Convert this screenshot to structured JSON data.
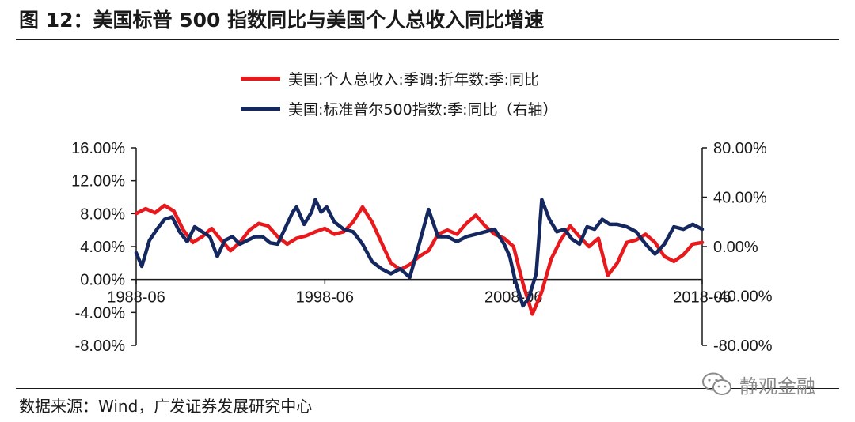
{
  "figure": {
    "title": "图 12：美国标普 500 指数同比与美国个人总收入同比增速",
    "source": "数据来源：Wind，广发证券发展研究中心",
    "watermark": "静观金融"
  },
  "legend": [
    {
      "label": "美国:个人总收入:季调:折年数:季:同比",
      "color": "#e8191d"
    },
    {
      "label": "美国:标准普尔500指数:季:同比（右轴）",
      "color": "#14285f"
    }
  ],
  "chart_data": {
    "type": "line",
    "title": "美国标普 500 指数同比与美国个人总收入同比增速",
    "x_range": [
      1988.5,
      2018.5
    ],
    "x_tick_labels": [
      "1988-06",
      "1998-06",
      "2008-06",
      "2018-06"
    ],
    "x_tick_values": [
      1988.5,
      1998.5,
      2008.5,
      2018.5
    ],
    "left_axis": {
      "range": [
        -8,
        16
      ],
      "ticks": [
        -8,
        -4,
        0,
        4,
        8,
        12,
        16
      ],
      "tick_labels": [
        "-8.00%",
        "-4.00%",
        "0.00%",
        "4.00%",
        "8.00%",
        "12.00%",
        "16.00%"
      ]
    },
    "right_axis": {
      "range": [
        -80,
        80
      ],
      "ticks": [
        -80,
        -40,
        0,
        40,
        80
      ],
      "tick_labels": [
        "-80.00%",
        "-40.00%",
        "0.00%",
        "40.00%",
        "80.00%"
      ]
    },
    "series": [
      {
        "name": "美国:个人总收入:季调:折年数:季:同比",
        "axis": "left",
        "color": "#e8191d",
        "points": [
          [
            1988.5,
            8.0
          ],
          [
            1989.0,
            8.6
          ],
          [
            1989.5,
            8.1
          ],
          [
            1990.0,
            9.0
          ],
          [
            1990.5,
            8.3
          ],
          [
            1991.0,
            6.0
          ],
          [
            1991.5,
            4.5
          ],
          [
            1992.0,
            5.2
          ],
          [
            1992.5,
            6.2
          ],
          [
            1993.0,
            4.8
          ],
          [
            1993.5,
            3.5
          ],
          [
            1994.0,
            4.5
          ],
          [
            1994.5,
            6.0
          ],
          [
            1995.0,
            6.8
          ],
          [
            1995.5,
            6.5
          ],
          [
            1996.0,
            5.2
          ],
          [
            1996.5,
            4.3
          ],
          [
            1997.0,
            5.0
          ],
          [
            1997.5,
            5.3
          ],
          [
            1998.0,
            5.8
          ],
          [
            1998.5,
            6.2
          ],
          [
            1999.0,
            5.5
          ],
          [
            1999.5,
            5.8
          ],
          [
            2000.0,
            7.0
          ],
          [
            2000.5,
            8.8
          ],
          [
            2001.0,
            7.0
          ],
          [
            2001.5,
            4.5
          ],
          [
            2002.0,
            2.0
          ],
          [
            2002.5,
            1.2
          ],
          [
            2003.0,
            1.8
          ],
          [
            2003.5,
            2.8
          ],
          [
            2004.0,
            3.5
          ],
          [
            2004.5,
            5.5
          ],
          [
            2005.0,
            6.0
          ],
          [
            2005.5,
            5.5
          ],
          [
            2006.0,
            6.8
          ],
          [
            2006.5,
            7.8
          ],
          [
            2007.0,
            6.5
          ],
          [
            2007.5,
            5.5
          ],
          [
            2008.0,
            5.0
          ],
          [
            2008.5,
            4.0
          ],
          [
            2009.0,
            -0.5
          ],
          [
            2009.5,
            -4.2
          ],
          [
            2010.0,
            -1.5
          ],
          [
            2010.5,
            2.5
          ],
          [
            2011.0,
            4.8
          ],
          [
            2011.5,
            6.5
          ],
          [
            2012.0,
            5.2
          ],
          [
            2012.5,
            4.0
          ],
          [
            2013.0,
            5.0
          ],
          [
            2013.5,
            0.5
          ],
          [
            2014.0,
            2.0
          ],
          [
            2014.5,
            4.5
          ],
          [
            2015.0,
            4.8
          ],
          [
            2015.5,
            5.5
          ],
          [
            2016.0,
            4.5
          ],
          [
            2016.5,
            2.8
          ],
          [
            2017.0,
            2.2
          ],
          [
            2017.5,
            3.0
          ],
          [
            2018.0,
            4.3
          ],
          [
            2018.5,
            4.5
          ]
        ]
      },
      {
        "name": "美国:标准普尔500指数:季:同比（右轴）",
        "axis": "right",
        "color": "#14285f",
        "points": [
          [
            1988.5,
            -5
          ],
          [
            1988.8,
            -16
          ],
          [
            1989.2,
            5
          ],
          [
            1989.6,
            14
          ],
          [
            1990.0,
            22
          ],
          [
            1990.4,
            24
          ],
          [
            1990.8,
            12
          ],
          [
            1991.2,
            4
          ],
          [
            1991.6,
            16
          ],
          [
            1992.0,
            12
          ],
          [
            1992.4,
            8
          ],
          [
            1992.8,
            -8
          ],
          [
            1993.2,
            5
          ],
          [
            1993.6,
            8
          ],
          [
            1994.0,
            2
          ],
          [
            1994.4,
            5
          ],
          [
            1994.8,
            8
          ],
          [
            1995.2,
            8
          ],
          [
            1995.6,
            3
          ],
          [
            1996.0,
            2
          ],
          [
            1996.4,
            15
          ],
          [
            1996.8,
            28
          ],
          [
            1997.0,
            32
          ],
          [
            1997.4,
            18
          ],
          [
            1997.8,
            28
          ],
          [
            1998.0,
            38
          ],
          [
            1998.3,
            28
          ],
          [
            1998.6,
            32
          ],
          [
            1999.0,
            20
          ],
          [
            1999.5,
            14
          ],
          [
            2000.0,
            12
          ],
          [
            2000.5,
            2
          ],
          [
            2001.0,
            -12
          ],
          [
            2001.5,
            -18
          ],
          [
            2002.0,
            -22
          ],
          [
            2002.5,
            -18
          ],
          [
            2003.0,
            -25
          ],
          [
            2003.5,
            2
          ],
          [
            2004.0,
            30
          ],
          [
            2004.5,
            8
          ],
          [
            2005.0,
            8
          ],
          [
            2005.5,
            4
          ],
          [
            2006.0,
            8
          ],
          [
            2006.5,
            10
          ],
          [
            2007.0,
            12
          ],
          [
            2007.5,
            14
          ],
          [
            2008.0,
            2
          ],
          [
            2008.3,
            -8
          ],
          [
            2008.6,
            -28
          ],
          [
            2009.0,
            -48
          ],
          [
            2009.3,
            -42
          ],
          [
            2009.7,
            -22
          ],
          [
            2010.0,
            38
          ],
          [
            2010.4,
            22
          ],
          [
            2010.8,
            12
          ],
          [
            2011.2,
            14
          ],
          [
            2011.6,
            6
          ],
          [
            2012.0,
            2
          ],
          [
            2012.4,
            16
          ],
          [
            2012.8,
            14
          ],
          [
            2013.2,
            22
          ],
          [
            2013.6,
            18
          ],
          [
            2014.0,
            18
          ],
          [
            2014.5,
            16
          ],
          [
            2015.0,
            12
          ],
          [
            2015.5,
            2
          ],
          [
            2016.0,
            -6
          ],
          [
            2016.5,
            2
          ],
          [
            2017.0,
            16
          ],
          [
            2017.5,
            14
          ],
          [
            2018.0,
            18
          ],
          [
            2018.5,
            14
          ]
        ]
      }
    ]
  }
}
